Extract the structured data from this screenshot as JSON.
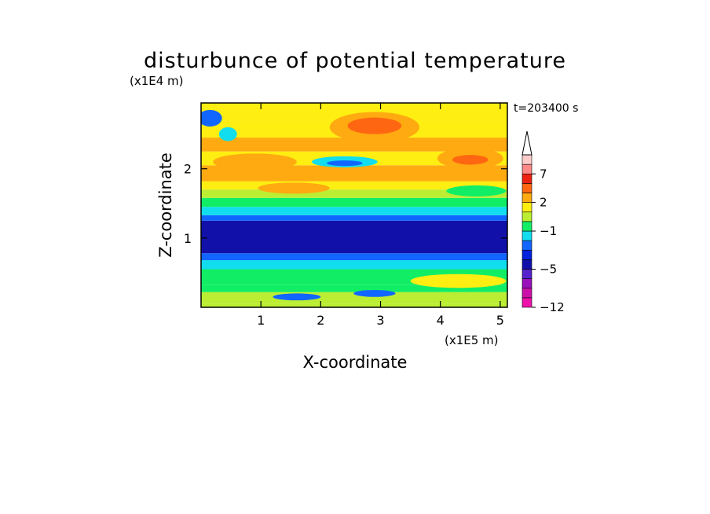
{
  "chart_data": {
    "type": "heatmap",
    "title": "disturbunce of potential temperature",
    "xlabel": "X-coordinate",
    "ylabel": "Z-coordinate",
    "x_unit_label": "(x1E5 m)",
    "y_unit_label": "(x1E4 m)",
    "time_label": "t=203400 s",
    "xlim": [
      0,
      5.12
    ],
    "ylim": [
      0,
      2.95
    ],
    "x_ticks": [
      1,
      2,
      3,
      4,
      5
    ],
    "y_ticks": [
      1,
      2
    ],
    "colorbar": {
      "levels": [
        -12,
        -11,
        -9,
        -7,
        -5,
        -4,
        -3,
        -2,
        -1,
        0,
        1,
        2,
        3,
        5,
        7,
        9,
        11
      ],
      "colors": [
        "#ee11aa",
        "#cc11aa",
        "#9911bb",
        "#5522cc",
        "#1111aa",
        "#0022dd",
        "#1166ff",
        "#11ddee",
        "#11ee66",
        "#bbee33",
        "#ffee11",
        "#ffaa11",
        "#ff6611",
        "#ee2211",
        "#ff8888",
        "#ffcccc"
      ],
      "tick_labels": [
        "7",
        "2",
        "−1",
        "−5",
        "−12"
      ],
      "tick_values": [
        7,
        2,
        -1,
        -5,
        -12
      ],
      "extend_max_arrow": true
    },
    "bands": [
      {
        "z0": 0.0,
        "z1": 0.05,
        "value": 0.5
      },
      {
        "z0": 0.05,
        "z1": 0.22,
        "value": 0.5
      },
      {
        "z0": 0.22,
        "z1": 0.32,
        "value": -0.5
      },
      {
        "z0": 0.32,
        "z1": 0.55,
        "value": -0.5
      },
      {
        "z0": 0.55,
        "z1": 0.68,
        "value": -1.5
      },
      {
        "z0": 0.68,
        "z1": 0.78,
        "value": -2.5
      },
      {
        "z0": 0.78,
        "z1": 1.25,
        "value": -4.5
      },
      {
        "z0": 1.25,
        "z1": 1.33,
        "value": -2.5
      },
      {
        "z0": 1.33,
        "z1": 1.45,
        "value": -1.5
      },
      {
        "z0": 1.45,
        "z1": 1.58,
        "value": -0.5
      },
      {
        "z0": 1.58,
        "z1": 1.7,
        "value": 0.5
      },
      {
        "z0": 1.7,
        "z1": 1.82,
        "value": 1.5
      },
      {
        "z0": 1.82,
        "z1": 2.05,
        "value": 2.5
      },
      {
        "z0": 2.05,
        "z1": 2.25,
        "value": 1.5
      },
      {
        "z0": 2.25,
        "z1": 2.45,
        "value": 2.5
      },
      {
        "z0": 2.45,
        "z1": 2.7,
        "value": 1.5
      },
      {
        "z0": 2.7,
        "z1": 2.95,
        "value": 1.5
      }
    ],
    "features": [
      {
        "shape": "ellipse",
        "x": 2.9,
        "z": 2.6,
        "rx": 0.75,
        "rz": 0.22,
        "value": 2.5
      },
      {
        "shape": "ellipse",
        "x": 2.9,
        "z": 2.62,
        "rx": 0.45,
        "rz": 0.12,
        "value": 4
      },
      {
        "shape": "ellipse",
        "x": 0.9,
        "z": 2.1,
        "rx": 0.7,
        "rz": 0.12,
        "value": 2.5
      },
      {
        "shape": "ellipse",
        "x": 4.5,
        "z": 2.15,
        "rx": 0.55,
        "rz": 0.15,
        "value": 2.5
      },
      {
        "shape": "ellipse",
        "x": 4.5,
        "z": 2.13,
        "rx": 0.3,
        "rz": 0.07,
        "value": 4
      },
      {
        "shape": "ellipse",
        "x": 1.55,
        "z": 1.72,
        "rx": 0.6,
        "rz": 0.08,
        "value": 2.5
      },
      {
        "shape": "ellipse",
        "x": 2.4,
        "z": 2.1,
        "rx": 0.55,
        "rz": 0.08,
        "value": -1.5
      },
      {
        "shape": "ellipse",
        "x": 2.4,
        "z": 2.08,
        "rx": 0.3,
        "rz": 0.04,
        "value": -3
      },
      {
        "shape": "ellipse",
        "x": 0.15,
        "z": 2.73,
        "rx": 0.2,
        "rz": 0.12,
        "value": -2.5
      },
      {
        "shape": "ellipse",
        "x": 0.45,
        "z": 2.5,
        "rx": 0.15,
        "rz": 0.1,
        "value": -1.5
      },
      {
        "shape": "ellipse",
        "x": 4.3,
        "z": 0.38,
        "rx": 0.8,
        "rz": 0.1,
        "value": 1.5
      },
      {
        "shape": "ellipse",
        "x": 1.6,
        "z": 0.15,
        "rx": 0.4,
        "rz": 0.05,
        "value": -2.5
      },
      {
        "shape": "ellipse",
        "x": 2.9,
        "z": 0.2,
        "rx": 0.35,
        "rz": 0.05,
        "value": -2.5
      },
      {
        "shape": "ellipse",
        "x": 4.6,
        "z": 1.68,
        "rx": 0.5,
        "rz": 0.08,
        "value": -0.5
      }
    ]
  }
}
